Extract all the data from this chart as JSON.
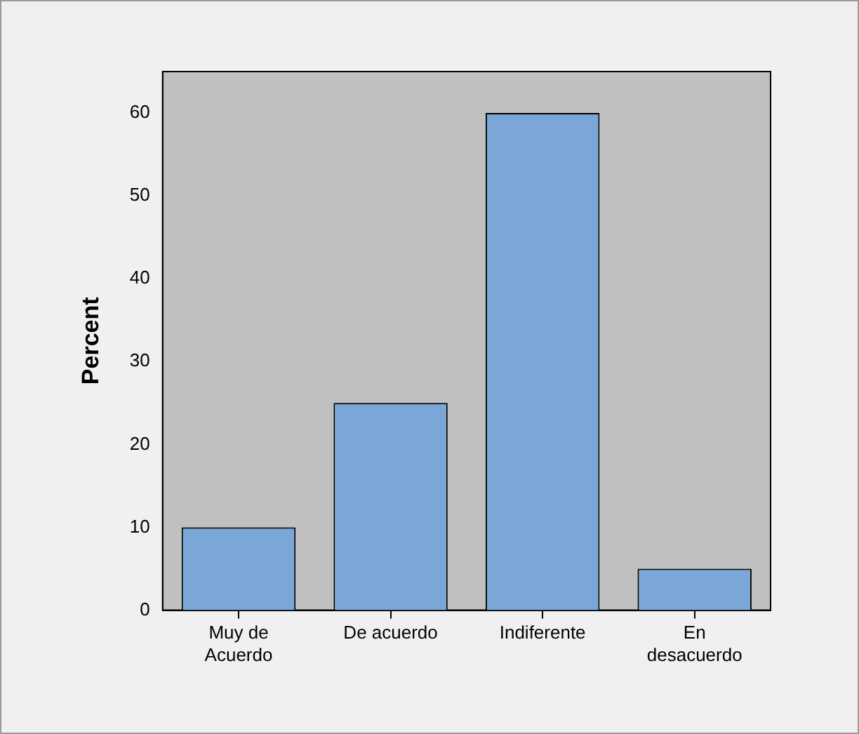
{
  "chart_data": {
    "type": "bar",
    "ylabel": "Percent",
    "categories": [
      "Muy de Acuerdo",
      "De acuerdo",
      "Indiferente",
      "En desacuerdo"
    ],
    "values": [
      10,
      25,
      60,
      5
    ],
    "color": "#7ba7d8",
    "ylim": [
      0,
      65
    ],
    "yticks": [
      0,
      10,
      20,
      30,
      40,
      50,
      60
    ],
    "grid": false,
    "legend": false
  }
}
